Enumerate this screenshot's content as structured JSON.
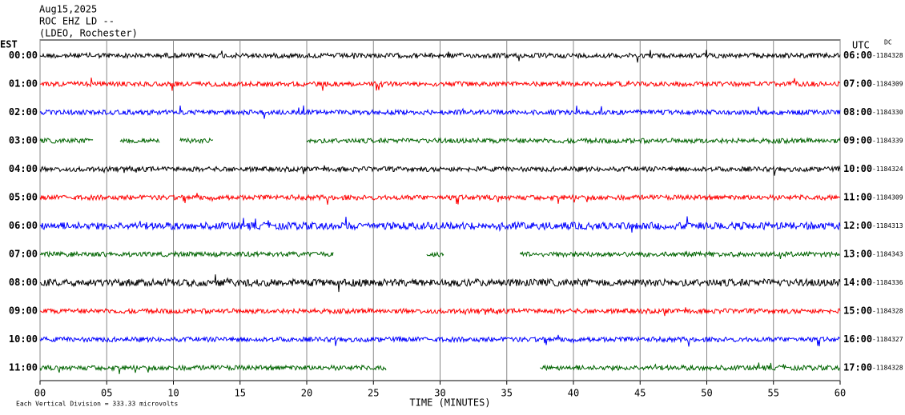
{
  "chart_data": {
    "type": "helicorder",
    "title": [
      "Aug15,2025",
      "ROC EHZ LD --",
      "(LDEO, Rochester)"
    ],
    "left_axis_label": "EST",
    "right_axis_label": "UTC",
    "dc_label": "DC",
    "xlabel": "TIME (MINUTES)",
    "footer": "Each Vertical Division =  333.33 microvolts",
    "xlim": [
      0,
      60
    ],
    "xticks": [
      {
        "value": 0,
        "label": "00"
      },
      {
        "value": 5,
        "label": "05"
      },
      10,
      15,
      20,
      25,
      30,
      35,
      40,
      45,
      50,
      55,
      60
    ],
    "grid": true,
    "series": [
      {
        "name": "00:00",
        "utc": "06:00",
        "dc": "-1184328",
        "color": "#000000",
        "segments": [
          [
            0,
            60
          ]
        ]
      },
      {
        "name": "01:00",
        "utc": "07:00",
        "dc": "-1184309",
        "color": "#ff0000",
        "segments": [
          [
            0,
            60
          ]
        ]
      },
      {
        "name": "02:00",
        "utc": "08:00",
        "dc": "-1184330",
        "color": "#0000ff",
        "segments": [
          [
            0,
            60
          ]
        ]
      },
      {
        "name": "03:00",
        "utc": "09:00",
        "dc": "-1184339",
        "color": "#006400",
        "segments": [
          [
            0,
            4
          ],
          [
            6,
            9
          ],
          [
            10.5,
            13
          ],
          [
            20,
            60
          ]
        ]
      },
      {
        "name": "04:00",
        "utc": "10:00",
        "dc": "-1184324",
        "color": "#000000",
        "segments": [
          [
            0,
            60
          ]
        ]
      },
      {
        "name": "05:00",
        "utc": "11:00",
        "dc": "-1184309",
        "color": "#ff0000",
        "segments": [
          [
            0,
            60
          ]
        ]
      },
      {
        "name": "06:00",
        "utc": "12:00",
        "dc": "-1184313",
        "color": "#0000ff",
        "segments": [
          [
            0,
            60
          ]
        ]
      },
      {
        "name": "07:00",
        "utc": "13:00",
        "dc": "-1184343",
        "color": "#006400",
        "segments": [
          [
            0,
            22
          ],
          [
            29,
            30.3
          ],
          [
            36,
            60
          ]
        ]
      },
      {
        "name": "08:00",
        "utc": "14:00",
        "dc": "-1184336",
        "color": "#000000",
        "segments": [
          [
            0,
            60
          ]
        ]
      },
      {
        "name": "09:00",
        "utc": "15:00",
        "dc": "-1184328",
        "color": "#ff0000",
        "segments": [
          [
            0,
            60
          ]
        ]
      },
      {
        "name": "10:00",
        "utc": "16:00",
        "dc": "-1184327",
        "color": "#0000ff",
        "segments": [
          [
            0,
            60
          ]
        ]
      },
      {
        "name": "11:00",
        "utc": "17:00",
        "dc": "-1184328",
        "color": "#006400",
        "segments": [
          [
            0,
            26
          ],
          [
            37.5,
            60
          ]
        ]
      }
    ]
  }
}
